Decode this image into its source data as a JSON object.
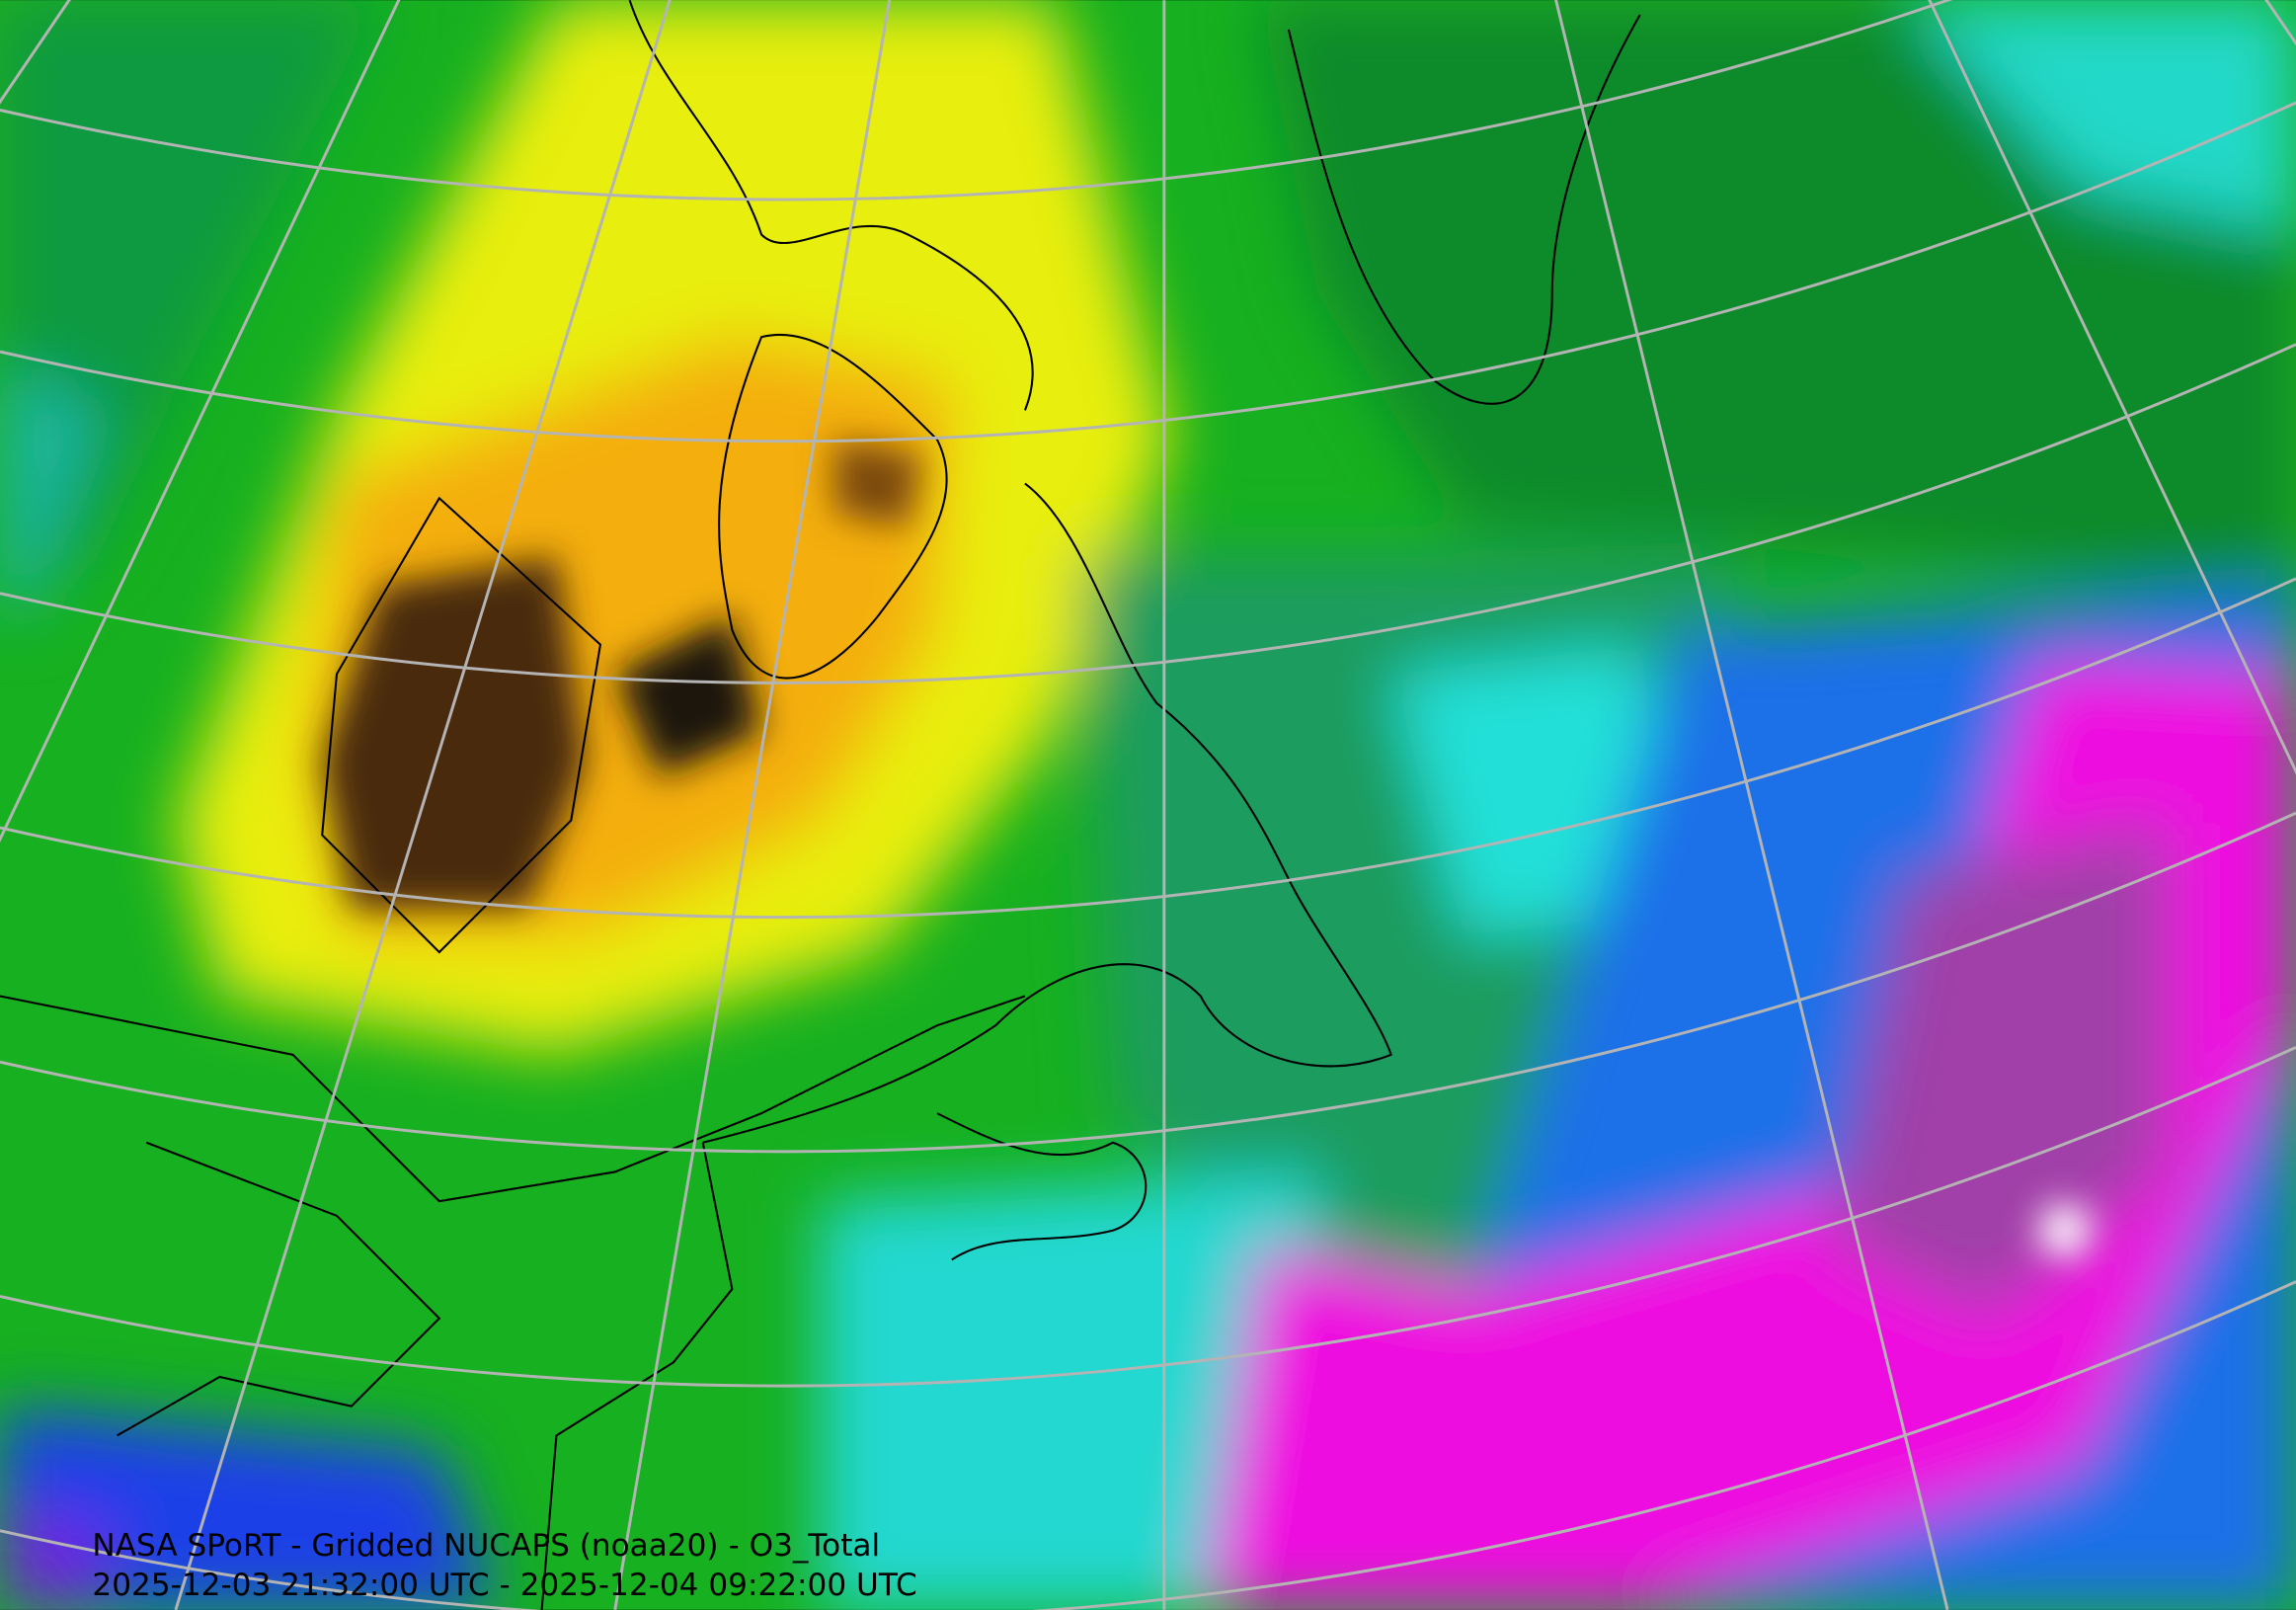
{
  "caption": {
    "title": "NASA SPoRT - Gridded NUCAPS (noaa20) - O3_Total",
    "time_range": "2025-12-03 21:32:00 UTC - 2025-12-04 09:22:00 UTC"
  }
}
